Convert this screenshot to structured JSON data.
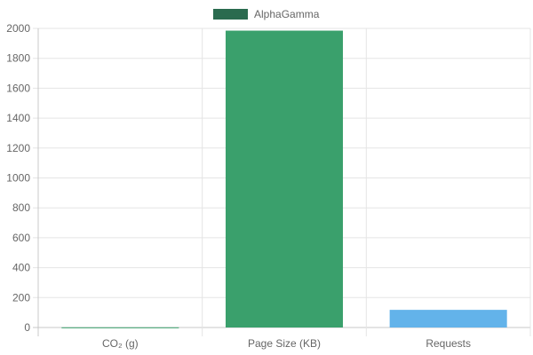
{
  "chart_data": {
    "type": "bar",
    "title": "",
    "xlabel": "",
    "ylabel": "",
    "categories": [
      "CO₂ (g)",
      "Page Size (KB)",
      "Requests"
    ],
    "series": [
      {
        "name": "AlphaGamma",
        "values": [
          1.0,
          1985,
          118
        ],
        "legend_color": "#2a6b4f",
        "bar_colors": [
          "#3aa06c",
          "#3aa06c",
          "#63b3ea"
        ]
      }
    ],
    "ylim": [
      0,
      2000
    ],
    "yticks": [
      0,
      200,
      400,
      600,
      800,
      1000,
      1200,
      1400,
      1600,
      1800,
      2000
    ],
    "grid": true,
    "legend_position": "top-center"
  },
  "colors": {
    "grid": "#e5e5e5",
    "axis": "#c8c8c8",
    "text": "#666666"
  }
}
